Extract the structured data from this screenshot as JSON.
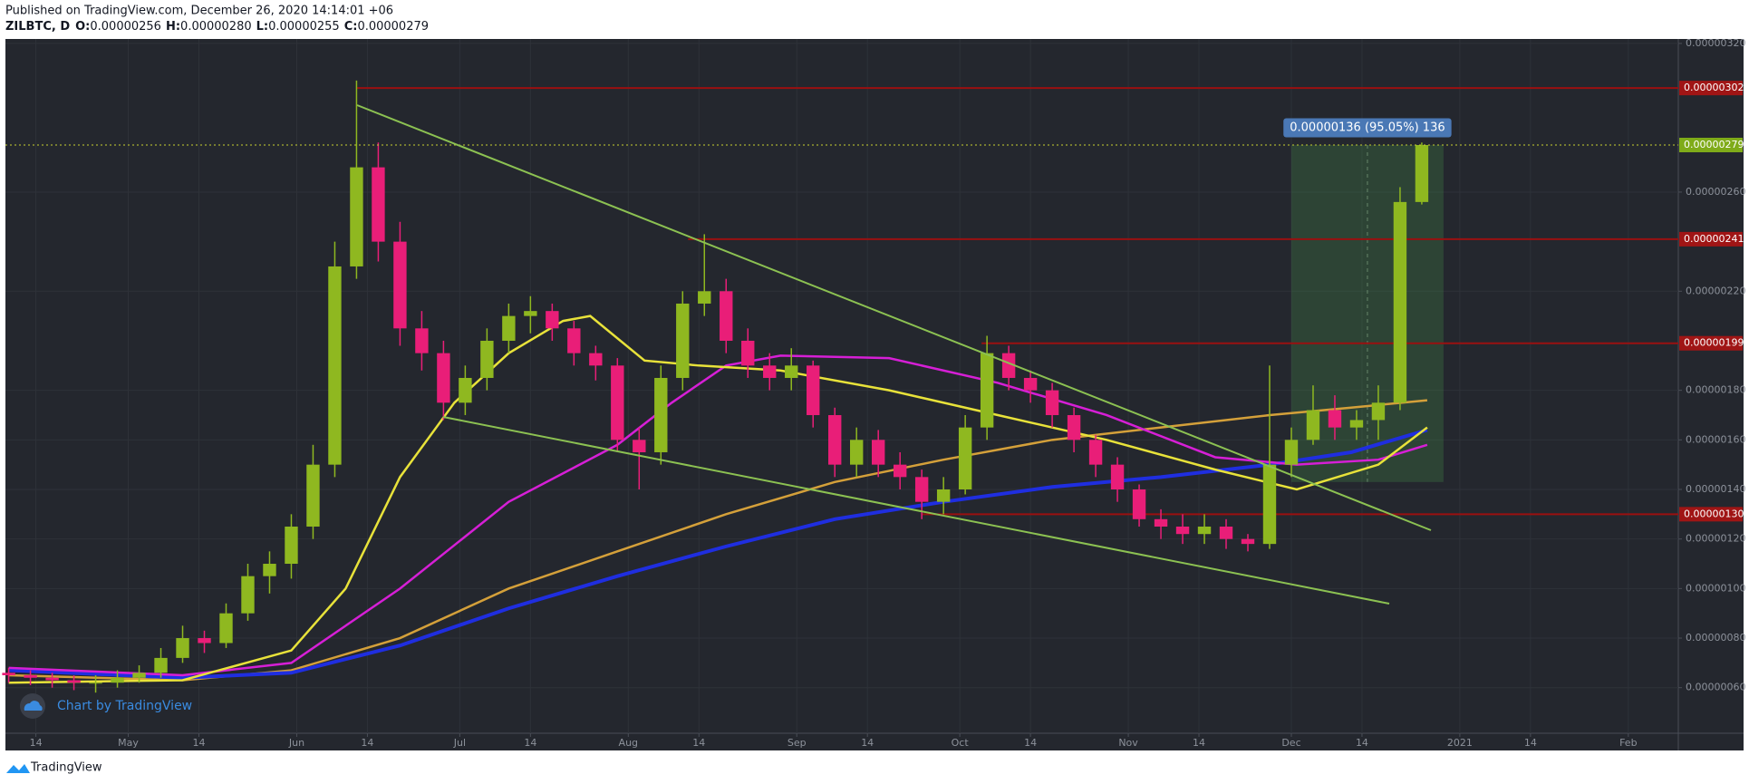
{
  "header": {
    "published": "Published on TradingView.com, December 26, 2020 14:14:01 +06",
    "symbol": "ZILBTC, D",
    "ohlc": [
      {
        "key": "O:",
        "value": "0.00000256"
      },
      {
        "key": "H:",
        "value": "0.00000280"
      },
      {
        "key": "L:",
        "value": "0.00000255"
      },
      {
        "key": "C:",
        "value": "0.00000279"
      }
    ]
  },
  "watermark": "Chart by TradingView",
  "footer": "TradingView",
  "chart_data": {
    "type": "candlestick",
    "grid": true,
    "xlim": [
      7.4,
      315.2
    ],
    "ylim": [
      4.16e-07,
      3.218e-06
    ],
    "xticks": [
      {
        "value": 13,
        "label": "14"
      },
      {
        "value": 30,
        "label": "May"
      },
      {
        "value": 43,
        "label": "14"
      },
      {
        "value": 61,
        "label": "Jun"
      },
      {
        "value": 74,
        "label": "14"
      },
      {
        "value": 91,
        "label": "Jul"
      },
      {
        "value": 104,
        "label": "14"
      },
      {
        "value": 122,
        "label": "Aug"
      },
      {
        "value": 135,
        "label": "14"
      },
      {
        "value": 153,
        "label": "Sep"
      },
      {
        "value": 166,
        "label": "14"
      },
      {
        "value": 183,
        "label": "Oct"
      },
      {
        "value": 196,
        "label": "14"
      },
      {
        "value": 214,
        "label": "Nov"
      },
      {
        "value": 227,
        "label": "14"
      },
      {
        "value": 244,
        "label": "Dec"
      },
      {
        "value": 257,
        "label": "14"
      },
      {
        "value": 275,
        "label": "2021"
      },
      {
        "value": 288,
        "label": "14"
      },
      {
        "value": 306,
        "label": "Feb"
      }
    ],
    "yticks": [
      {
        "value": 3.2e-06,
        "label": "0.00000320"
      },
      {
        "value": 2.6e-06,
        "label": "0.00000260"
      },
      {
        "value": 2.2e-06,
        "label": "0.00000220"
      },
      {
        "value": 1.8e-06,
        "label": "0.00000180"
      },
      {
        "value": 1.6e-06,
        "label": "0.00000160"
      },
      {
        "value": 1.4e-06,
        "label": "0.00000140"
      },
      {
        "value": 1.2e-06,
        "label": "0.00000120"
      },
      {
        "value": 1e-06,
        "label": "0.00000100"
      },
      {
        "value": 8e-07,
        "label": "0.00000080"
      },
      {
        "value": 6e-07,
        "label": "0.00000060"
      }
    ],
    "up_color": "#8fb820",
    "down_color": "#e91e78",
    "x": [
      8,
      12,
      16,
      20,
      24,
      28,
      32,
      36,
      40,
      44,
      48,
      52,
      56,
      60,
      64,
      68,
      72,
      76,
      80,
      84,
      88,
      92,
      96,
      100,
      104,
      108,
      112,
      116,
      120,
      124,
      128,
      132,
      136,
      140,
      144,
      148,
      152,
      156,
      160,
      164,
      168,
      172,
      176,
      180,
      184,
      188,
      192,
      196,
      200,
      204,
      208,
      212,
      216,
      220,
      224,
      228,
      232,
      236,
      240,
      244,
      248,
      252,
      256,
      260,
      264,
      268
    ],
    "open": [
      6.6e-07,
      6.5e-07,
      6.4e-07,
      6.3e-07,
      6.2e-07,
      6.2e-07,
      6.4e-07,
      6.6e-07,
      7.2e-07,
      8e-07,
      7.8e-07,
      9e-07,
      1.05e-06,
      1.1e-06,
      1.25e-06,
      1.5e-06,
      2.3e-06,
      2.7e-06,
      2.4e-06,
      2.05e-06,
      1.95e-06,
      1.75e-06,
      1.85e-06,
      2e-06,
      2.1e-06,
      2.12e-06,
      2.05e-06,
      1.95e-06,
      1.9e-06,
      1.6e-06,
      1.55e-06,
      1.85e-06,
      2.15e-06,
      2.2e-06,
      2e-06,
      1.9e-06,
      1.85e-06,
      1.9e-06,
      1.7e-06,
      1.5e-06,
      1.6e-06,
      1.5e-06,
      1.45e-06,
      1.35e-06,
      1.4e-06,
      1.65e-06,
      1.95e-06,
      1.85e-06,
      1.8e-06,
      1.7e-06,
      1.6e-06,
      1.5e-06,
      1.4e-06,
      1.28e-06,
      1.25e-06,
      1.22e-06,
      1.25e-06,
      1.2e-06,
      1.18e-06,
      1.5e-06,
      1.6e-06,
      1.72e-06,
      1.65e-06,
      1.68e-06,
      1.75e-06,
      2.56e-06
    ],
    "high": [
      6.8e-07,
      6.7e-07,
      6.6e-07,
      6.5e-07,
      6.5e-07,
      6.7e-07,
      6.9e-07,
      7.6e-07,
      8.5e-07,
      8.3e-07,
      9.4e-07,
      1.1e-06,
      1.15e-06,
      1.3e-06,
      1.58e-06,
      2.4e-06,
      3.05e-06,
      2.8e-06,
      2.48e-06,
      2.12e-06,
      2e-06,
      1.9e-06,
      2.05e-06,
      2.15e-06,
      2.18e-06,
      2.15e-06,
      2.08e-06,
      1.98e-06,
      1.93e-06,
      1.65e-06,
      1.9e-06,
      2.2e-06,
      2.43e-06,
      2.25e-06,
      2.05e-06,
      1.95e-06,
      1.97e-06,
      1.92e-06,
      1.73e-06,
      1.65e-06,
      1.64e-06,
      1.55e-06,
      1.48e-06,
      1.45e-06,
      1.7e-06,
      2.02e-06,
      1.98e-06,
      1.88e-06,
      1.83e-06,
      1.73e-06,
      1.62e-06,
      1.53e-06,
      1.42e-06,
      1.32e-06,
      1.3e-06,
      1.3e-06,
      1.28e-06,
      1.22e-06,
      1.9e-06,
      1.65e-06,
      1.82e-06,
      1.78e-06,
      1.72e-06,
      1.82e-06,
      2.62e-06,
      2.8e-06
    ],
    "low": [
      6.2e-07,
      6.1e-07,
      6e-07,
      5.9e-07,
      5.8e-07,
      6e-07,
      6.2e-07,
      6.4e-07,
      7e-07,
      7.4e-07,
      7.6e-07,
      8.7e-07,
      9.8e-07,
      1.04e-06,
      1.2e-06,
      1.45e-06,
      2.25e-06,
      2.32e-06,
      1.98e-06,
      1.88e-06,
      1.68e-06,
      1.7e-06,
      1.8e-06,
      1.95e-06,
      2.03e-06,
      2e-06,
      1.9e-06,
      1.84e-06,
      1.55e-06,
      1.4e-06,
      1.5e-06,
      1.8e-06,
      2.1e-06,
      1.95e-06,
      1.85e-06,
      1.8e-06,
      1.8e-06,
      1.65e-06,
      1.45e-06,
      1.45e-06,
      1.45e-06,
      1.4e-06,
      1.28e-06,
      1.3e-06,
      1.38e-06,
      1.6e-06,
      1.8e-06,
      1.75e-06,
      1.65e-06,
      1.55e-06,
      1.45e-06,
      1.35e-06,
      1.25e-06,
      1.2e-06,
      1.18e-06,
      1.18e-06,
      1.16e-06,
      1.15e-06,
      1.16e-06,
      1.45e-06,
      1.58e-06,
      1.6e-06,
      1.6e-06,
      1.6e-06,
      1.72e-06,
      2.55e-06
    ],
    "close": [
      6.5e-07,
      6.4e-07,
      6.3e-07,
      6.2e-07,
      6.2e-07,
      6.4e-07,
      6.6e-07,
      7.2e-07,
      8e-07,
      7.8e-07,
      9e-07,
      1.05e-06,
      1.1e-06,
      1.25e-06,
      1.5e-06,
      2.3e-06,
      2.7e-06,
      2.4e-06,
      2.05e-06,
      1.95e-06,
      1.75e-06,
      1.85e-06,
      2e-06,
      2.1e-06,
      2.12e-06,
      2.05e-06,
      1.95e-06,
      1.9e-06,
      1.6e-06,
      1.55e-06,
      1.85e-06,
      2.15e-06,
      2.2e-06,
      2e-06,
      1.9e-06,
      1.85e-06,
      1.9e-06,
      1.7e-06,
      1.5e-06,
      1.6e-06,
      1.5e-06,
      1.45e-06,
      1.35e-06,
      1.4e-06,
      1.65e-06,
      1.95e-06,
      1.85e-06,
      1.8e-06,
      1.7e-06,
      1.6e-06,
      1.5e-06,
      1.4e-06,
      1.28e-06,
      1.25e-06,
      1.22e-06,
      1.25e-06,
      1.2e-06,
      1.18e-06,
      1.5e-06,
      1.6e-06,
      1.72e-06,
      1.65e-06,
      1.68e-06,
      1.75e-06,
      2.56e-06,
      2.79e-06
    ],
    "overlays": [
      {
        "color": "#d4a03a",
        "x": [
          8,
          40,
          60,
          80,
          100,
          120,
          140,
          160,
          180,
          200,
          220,
          240,
          255,
          269
        ],
        "values": [
          6.5e-07,
          6.3e-07,
          6.7e-07,
          8e-07,
          1e-06,
          1.15e-06,
          1.3e-06,
          1.43e-06,
          1.52e-06,
          1.6e-06,
          1.65e-06,
          1.7e-06,
          1.73e-06,
          1.76e-06
        ]
      },
      {
        "color": "#1f2ee0",
        "x": [
          8,
          40,
          60,
          80,
          100,
          120,
          140,
          160,
          180,
          200,
          220,
          240,
          255,
          269
        ],
        "values": [
          6.7e-07,
          6.4e-07,
          6.6e-07,
          7.7e-07,
          9.2e-07,
          1.05e-06,
          1.17e-06,
          1.28e-06,
          1.35e-06,
          1.41e-06,
          1.45e-06,
          1.5e-06,
          1.55e-06,
          1.64e-06
        ]
      },
      {
        "color": "#d61fd6",
        "x": [
          8,
          40,
          60,
          80,
          100,
          120,
          130,
          140,
          150,
          170,
          190,
          210,
          230,
          245,
          260,
          269
        ],
        "values": [
          6.8e-07,
          6.5e-07,
          7e-07,
          1e-06,
          1.35e-06,
          1.58e-06,
          1.75e-06,
          1.9e-06,
          1.94e-06,
          1.93e-06,
          1.83e-06,
          1.7e-06,
          1.53e-06,
          1.5e-06,
          1.52e-06,
          1.58e-06
        ]
      },
      {
        "color": "#e8e23a",
        "x": [
          8,
          40,
          60,
          70,
          80,
          90,
          100,
          110,
          115,
          125,
          135,
          150,
          170,
          190,
          210,
          230,
          245,
          260,
          269
        ],
        "values": [
          6.2e-07,
          6.3e-07,
          7.5e-07,
          1e-06,
          1.45e-06,
          1.75e-06,
          1.95e-06,
          2.08e-06,
          2.1e-06,
          1.92e-06,
          1.9e-06,
          1.88e-06,
          1.8e-06,
          1.7e-06,
          1.6e-06,
          1.48e-06,
          1.4e-06,
          1.5e-06,
          1.65e-06
        ]
      }
    ],
    "levels": [
      {
        "value": 3.02e-06,
        "label": "0.00000302",
        "start": 72
      },
      {
        "value": 2.41e-06,
        "label": "0.00000241",
        "start": 133
      },
      {
        "value": 1.99e-06,
        "label": "0.00000199",
        "start": 187
      },
      {
        "value": 1.3e-06,
        "label": "0.00000130",
        "start": 176
      }
    ],
    "last_price": {
      "value": 2.79e-06,
      "label": "0.00000279"
    },
    "measure": {
      "start": 244,
      "end": 272,
      "low": 1.43e-06,
      "high": 2.79e-06,
      "label": "0.00000136 (95.05%) 136"
    }
  }
}
